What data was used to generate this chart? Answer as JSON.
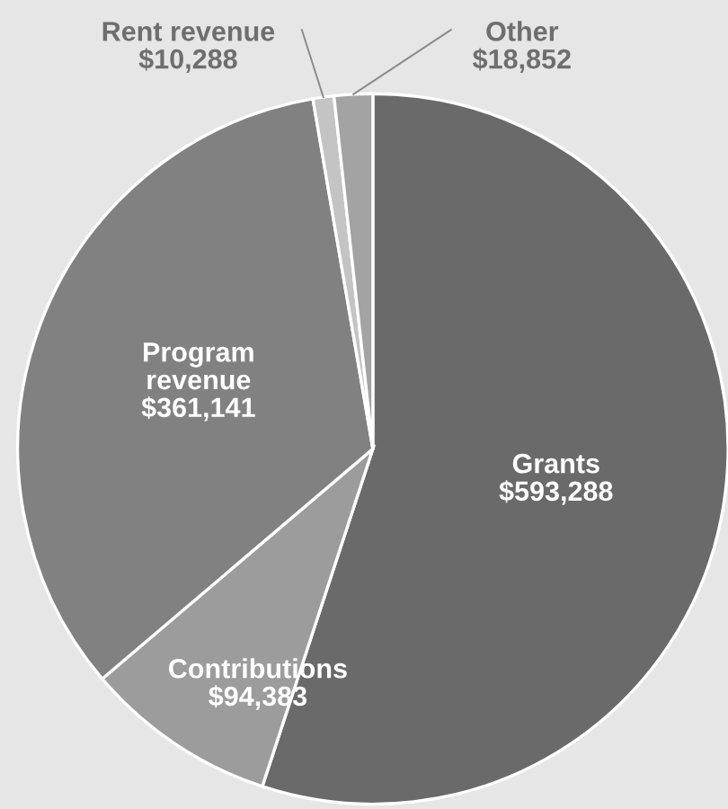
{
  "chart_data": {
    "type": "pie",
    "categories": [
      "Grants",
      "Contributions",
      "Program revenue",
      "Rent revenue",
      "Other"
    ],
    "values": [
      593288,
      94383,
      361141,
      10288,
      18852
    ],
    "value_labels": [
      "$593,288",
      "$94,383",
      "$361,141",
      "$10,288",
      "$18,852"
    ],
    "colors": [
      "#6a6a6a",
      "#9c9c9c",
      "#818181",
      "#c4c4c4",
      "#a3a3a3"
    ]
  }
}
